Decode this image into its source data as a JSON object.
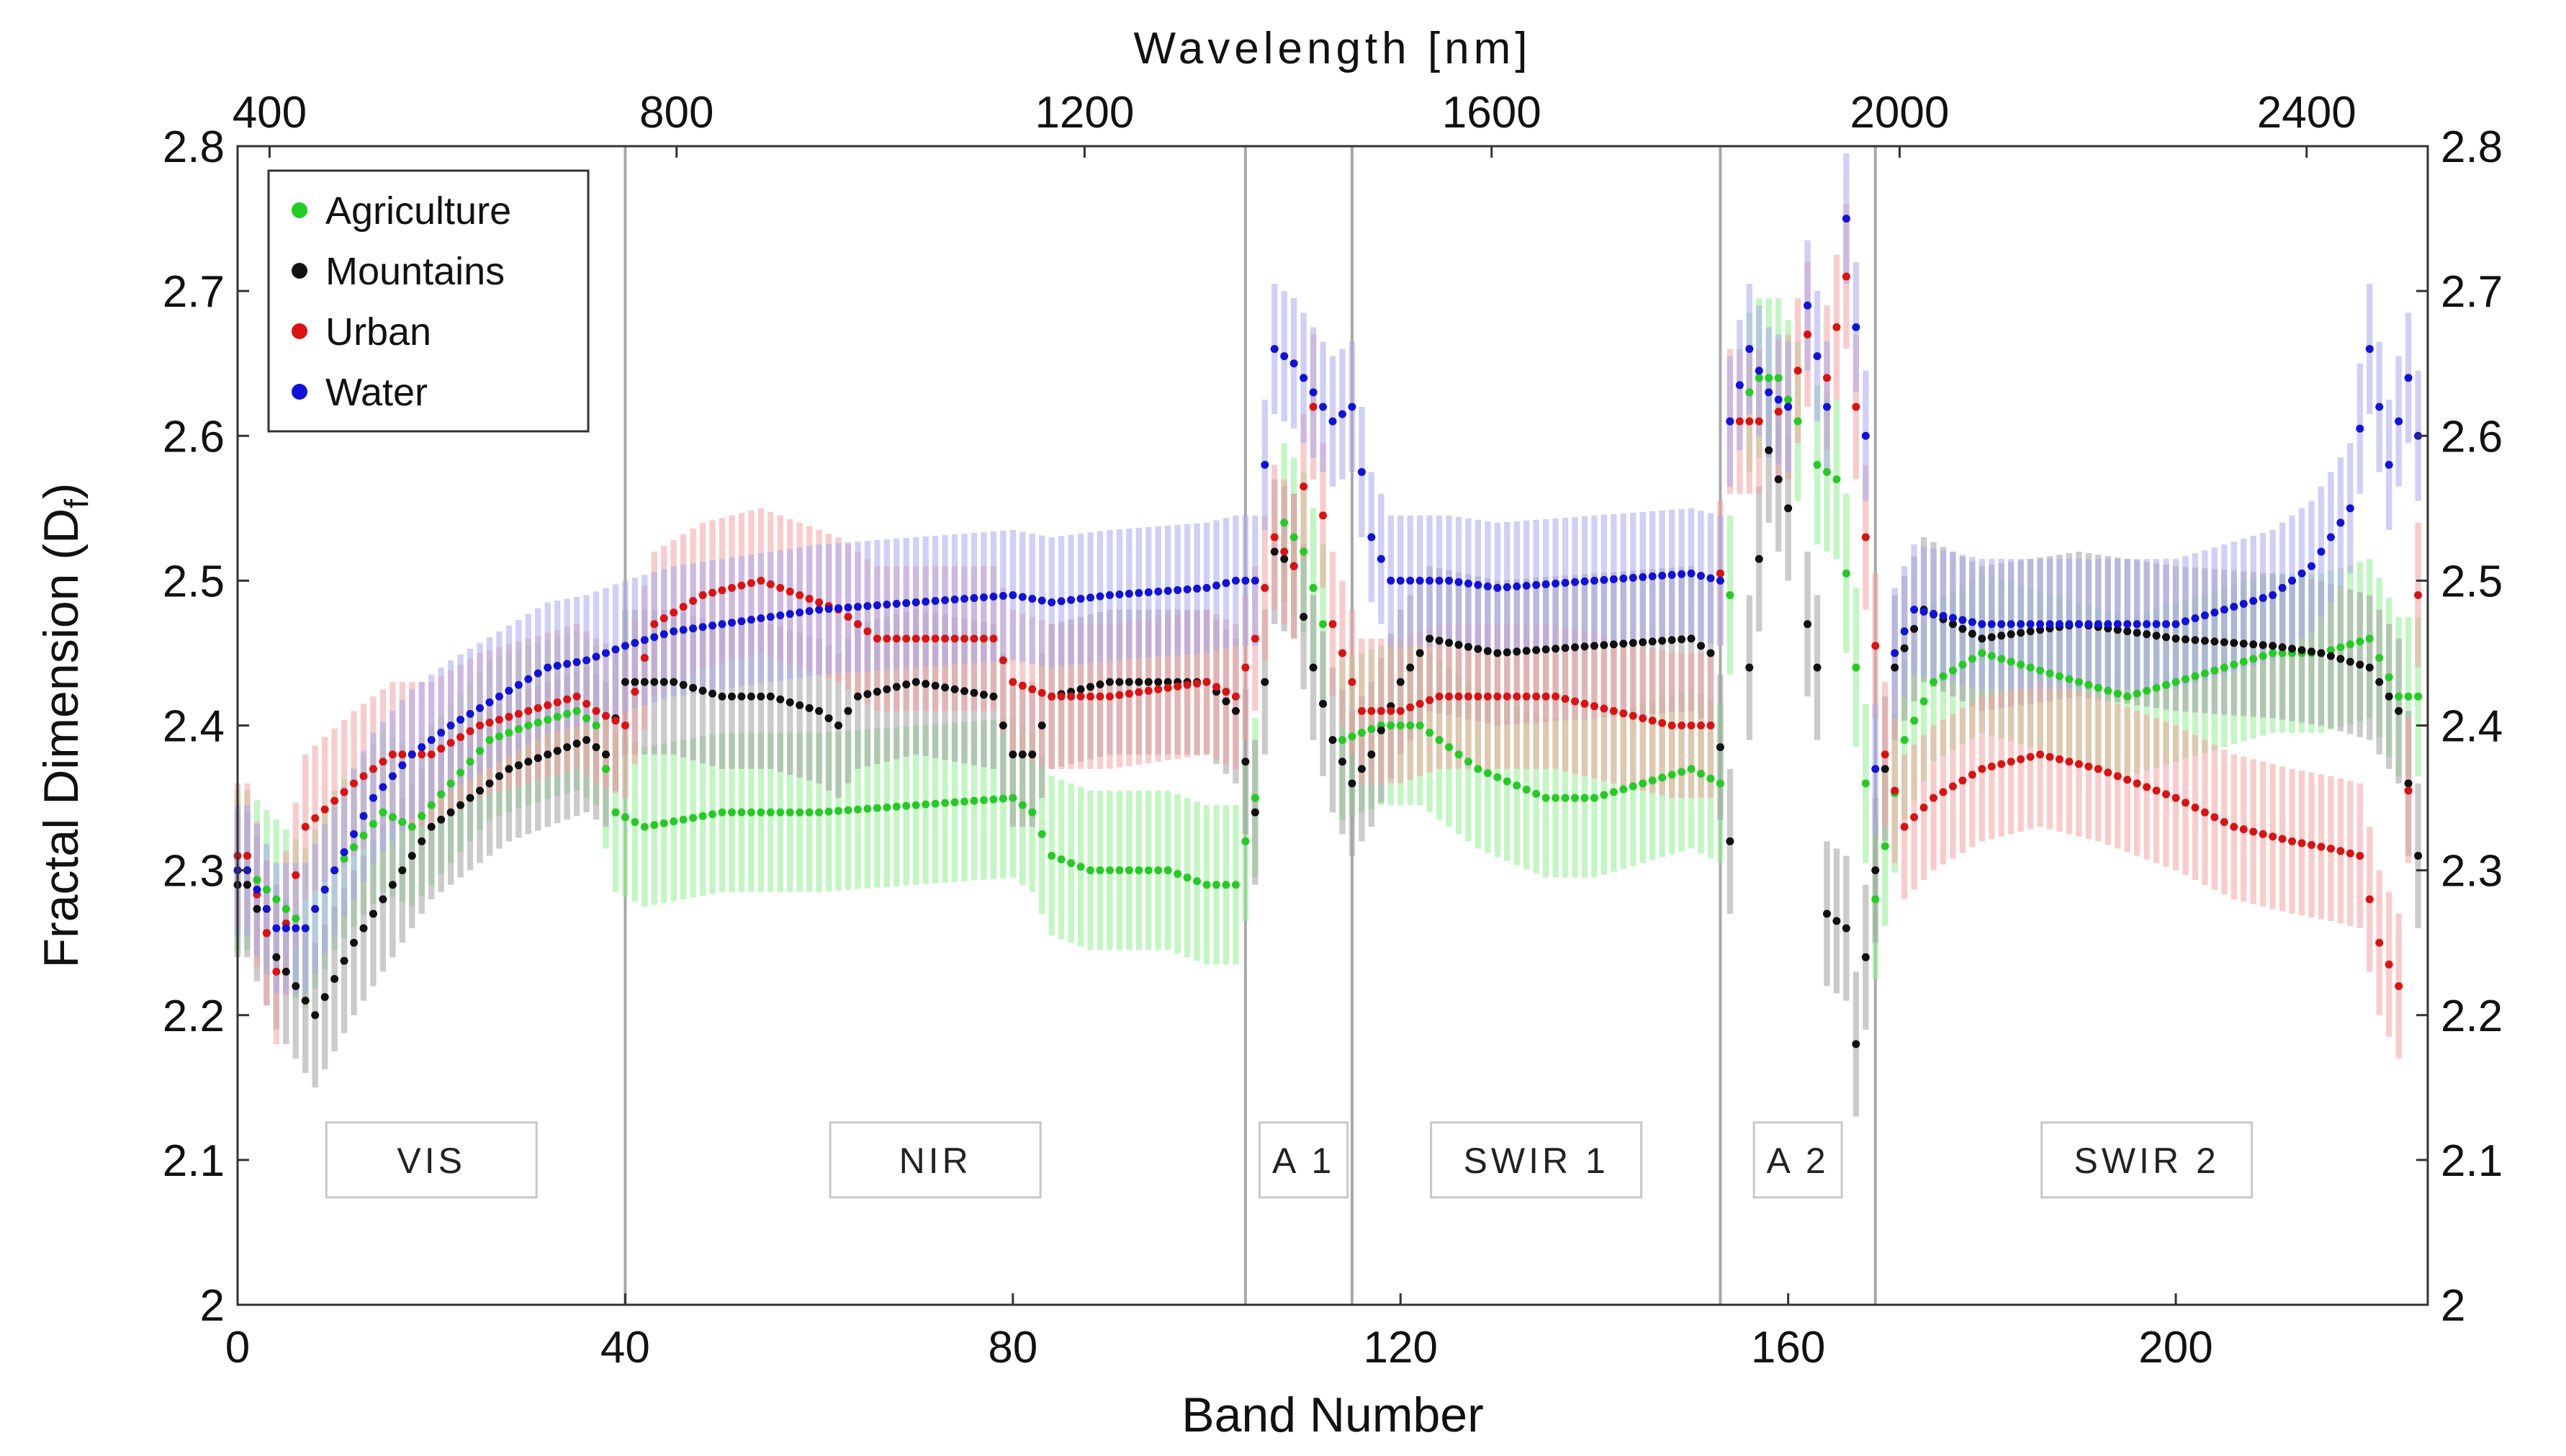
{
  "chart_data": {
    "type": "scatter",
    "title": "",
    "xlabel": "Band Number",
    "ylabel": "Fractal Dimension (D",
    "ylabel_subscript": "f",
    "ylabel_close": ")",
    "x2label": "Wavelength [nm]",
    "xlim": [
      0,
      226
    ],
    "ylim": [
      2.0,
      2.8
    ],
    "x_ticks": [
      0,
      40,
      80,
      120,
      160,
      200
    ],
    "x_tick_labels": [
      "0",
      "40",
      "80",
      "120",
      "160",
      "200"
    ],
    "y_ticks": [
      2.0,
      2.1,
      2.2,
      2.3,
      2.4,
      2.5,
      2.6,
      2.7,
      2.8
    ],
    "y_tick_labels": [
      "2",
      "2.1",
      "2.2",
      "2.3",
      "2.4",
      "2.5",
      "2.6",
      "2.7",
      "2.8"
    ],
    "x2_ticks_band": [
      3.3,
      45.3,
      87.4,
      129.4,
      171.5,
      213.5
    ],
    "x2_tick_labels": [
      "400",
      "800",
      "1200",
      "1600",
      "2000",
      "2400"
    ],
    "region_boundaries": [
      40,
      104,
      115,
      153,
      169
    ],
    "regions": [
      {
        "label": "VIS",
        "center": 20
      },
      {
        "label": "NIR",
        "center": 72
      },
      {
        "label": "A 1",
        "center": 110
      },
      {
        "label": "SWIR 1",
        "center": 134
      },
      {
        "label": "A 2",
        "center": 161
      },
      {
        "label": "SWIR 2",
        "center": 197
      }
    ],
    "legend": {
      "position": "top-left",
      "entries": [
        "Agriculture",
        "Mountains",
        "Urban",
        "Water"
      ]
    },
    "series": [
      {
        "name": "Agriculture",
        "color": "#22cc22",
        "band_color": "#90ee90",
        "anchors": [
          [
            1,
            2.3
          ],
          [
            4,
            2.28
          ],
          [
            7,
            2.26
          ],
          [
            10,
            2.3
          ],
          [
            15,
            2.34
          ],
          [
            18,
            2.33
          ],
          [
            22,
            2.36
          ],
          [
            26,
            2.39
          ],
          [
            30,
            2.4
          ],
          [
            35,
            2.41
          ],
          [
            37,
            2.4
          ],
          [
            39,
            2.34
          ],
          [
            42,
            2.33
          ],
          [
            50,
            2.34
          ],
          [
            60,
            2.34
          ],
          [
            70,
            2.345
          ],
          [
            80,
            2.35
          ],
          [
            82,
            2.34
          ],
          [
            84,
            2.31
          ],
          [
            88,
            2.3
          ],
          [
            96,
            2.3
          ],
          [
            100,
            2.29
          ],
          [
            103,
            2.29
          ],
          [
            105,
            2.35
          ],
          [
            108,
            2.54
          ],
          [
            110,
            2.52
          ],
          [
            112,
            2.47
          ],
          [
            114,
            2.39
          ],
          [
            118,
            2.4
          ],
          [
            122,
            2.4
          ],
          [
            128,
            2.37
          ],
          [
            135,
            2.35
          ],
          [
            140,
            2.35
          ],
          [
            145,
            2.36
          ],
          [
            150,
            2.37
          ],
          [
            153,
            2.36
          ],
          [
            154,
            2.49
          ],
          [
            155,
            2.62
          ],
          [
            157,
            2.64
          ],
          [
            159,
            2.64
          ],
          [
            161,
            2.61
          ],
          [
            163,
            2.58
          ],
          [
            165,
            2.57
          ],
          [
            167,
            2.44
          ],
          [
            169,
            2.28
          ],
          [
            172,
            2.39
          ],
          [
            175,
            2.43
          ],
          [
            180,
            2.45
          ],
          [
            185,
            2.44
          ],
          [
            190,
            2.43
          ],
          [
            195,
            2.42
          ],
          [
            200,
            2.43
          ],
          [
            205,
            2.44
          ],
          [
            210,
            2.45
          ],
          [
            215,
            2.45
          ],
          [
            220,
            2.46
          ],
          [
            223,
            2.42
          ],
          [
            225,
            2.42
          ]
        ],
        "err": 0.055,
        "missing": [
          [
            106,
            107
          ],
          [
            113,
            113
          ],
          [
            155,
            155
          ],
          [
            162,
            162
          ]
        ]
      },
      {
        "name": "Mountains",
        "color": "#111111",
        "band_color": "#a0a0a0",
        "anchors": [
          [
            1,
            2.29
          ],
          [
            4,
            2.24
          ],
          [
            8,
            2.2
          ],
          [
            12,
            2.25
          ],
          [
            16,
            2.29
          ],
          [
            20,
            2.33
          ],
          [
            24,
            2.35
          ],
          [
            28,
            2.37
          ],
          [
            32,
            2.38
          ],
          [
            36,
            2.39
          ],
          [
            38,
            2.38
          ],
          [
            40,
            2.43
          ],
          [
            45,
            2.43
          ],
          [
            50,
            2.42
          ],
          [
            55,
            2.42
          ],
          [
            60,
            2.41
          ],
          [
            62,
            2.4
          ],
          [
            64,
            2.42
          ],
          [
            70,
            2.43
          ],
          [
            78,
            2.42
          ],
          [
            80,
            2.38
          ],
          [
            82,
            2.38
          ],
          [
            84,
            2.42
          ],
          [
            90,
            2.43
          ],
          [
            100,
            2.43
          ],
          [
            103,
            2.41
          ],
          [
            105,
            2.34
          ],
          [
            107,
            2.52
          ],
          [
            109,
            2.51
          ],
          [
            111,
            2.44
          ],
          [
            113,
            2.39
          ],
          [
            115,
            2.36
          ],
          [
            117,
            2.38
          ],
          [
            120,
            2.43
          ],
          [
            123,
            2.46
          ],
          [
            130,
            2.45
          ],
          [
            140,
            2.455
          ],
          [
            150,
            2.46
          ],
          [
            152,
            2.45
          ],
          [
            154,
            2.32
          ],
          [
            156,
            2.44
          ],
          [
            158,
            2.59
          ],
          [
            160,
            2.55
          ],
          [
            162,
            2.47
          ],
          [
            163,
            2.44
          ],
          [
            164,
            2.27
          ],
          [
            166,
            2.26
          ],
          [
            167,
            2.18
          ],
          [
            169,
            2.3
          ],
          [
            171,
            2.44
          ],
          [
            174,
            2.48
          ],
          [
            180,
            2.46
          ],
          [
            190,
            2.47
          ],
          [
            200,
            2.46
          ],
          [
            210,
            2.455
          ],
          [
            215,
            2.45
          ],
          [
            220,
            2.44
          ],
          [
            223,
            2.41
          ],
          [
            225,
            2.31
          ]
        ],
        "err": 0.05,
        "missing": [
          [
            155,
            155
          ],
          [
            161,
            161
          ]
        ]
      },
      {
        "name": "Urban",
        "color": "#dd1111",
        "band_color": "#f4a3a3",
        "anchors": [
          [
            1,
            2.31
          ],
          [
            4,
            2.23
          ],
          [
            7,
            2.33
          ],
          [
            12,
            2.36
          ],
          [
            16,
            2.38
          ],
          [
            20,
            2.38
          ],
          [
            25,
            2.4
          ],
          [
            30,
            2.41
          ],
          [
            35,
            2.42
          ],
          [
            37,
            2.41
          ],
          [
            40,
            2.4
          ],
          [
            43,
            2.47
          ],
          [
            48,
            2.49
          ],
          [
            54,
            2.5
          ],
          [
            58,
            2.49
          ],
          [
            62,
            2.48
          ],
          [
            66,
            2.46
          ],
          [
            72,
            2.46
          ],
          [
            78,
            2.46
          ],
          [
            80,
            2.43
          ],
          [
            84,
            2.42
          ],
          [
            90,
            2.42
          ],
          [
            100,
            2.43
          ],
          [
            103,
            2.42
          ],
          [
            105,
            2.46
          ],
          [
            107,
            2.53
          ],
          [
            109,
            2.51
          ],
          [
            111,
            2.62
          ],
          [
            113,
            2.47
          ],
          [
            116,
            2.41
          ],
          [
            120,
            2.41
          ],
          [
            124,
            2.42
          ],
          [
            130,
            2.42
          ],
          [
            136,
            2.42
          ],
          [
            142,
            2.41
          ],
          [
            148,
            2.4
          ],
          [
            152,
            2.4
          ],
          [
            154,
            2.61
          ],
          [
            157,
            2.61
          ],
          [
            160,
            2.62
          ],
          [
            162,
            2.67
          ],
          [
            164,
            2.64
          ],
          [
            166,
            2.71
          ],
          [
            168,
            2.53
          ],
          [
            170,
            2.38
          ],
          [
            172,
            2.33
          ],
          [
            175,
            2.35
          ],
          [
            180,
            2.37
          ],
          [
            186,
            2.38
          ],
          [
            192,
            2.37
          ],
          [
            200,
            2.35
          ],
          [
            206,
            2.33
          ],
          [
            212,
            2.32
          ],
          [
            216,
            2.315
          ],
          [
            219,
            2.31
          ],
          [
            221,
            2.25
          ],
          [
            223,
            2.22
          ],
          [
            225,
            2.49
          ]
        ],
        "err": 0.05,
        "missing": [
          [
            158,
            158
          ],
          [
            163,
            163
          ]
        ]
      },
      {
        "name": "Water",
        "color": "#1111dd",
        "band_color": "#a9a9ee",
        "anchors": [
          [
            1,
            2.3
          ],
          [
            4,
            2.26
          ],
          [
            7,
            2.26
          ],
          [
            10,
            2.3
          ],
          [
            14,
            2.35
          ],
          [
            18,
            2.38
          ],
          [
            22,
            2.4
          ],
          [
            27,
            2.42
          ],
          [
            32,
            2.44
          ],
          [
            36,
            2.445
          ],
          [
            40,
            2.455
          ],
          [
            45,
            2.465
          ],
          [
            50,
            2.47
          ],
          [
            60,
            2.48
          ],
          [
            70,
            2.485
          ],
          [
            80,
            2.49
          ],
          [
            84,
            2.485
          ],
          [
            90,
            2.49
          ],
          [
            100,
            2.495
          ],
          [
            103,
            2.5
          ],
          [
            105,
            2.5
          ],
          [
            107,
            2.66
          ],
          [
            109,
            2.65
          ],
          [
            111,
            2.63
          ],
          [
            113,
            2.61
          ],
          [
            115,
            2.62
          ],
          [
            117,
            2.53
          ],
          [
            119,
            2.5
          ],
          [
            125,
            2.5
          ],
          [
            130,
            2.495
          ],
          [
            140,
            2.5
          ],
          [
            150,
            2.505
          ],
          [
            153,
            2.5
          ],
          [
            154,
            2.61
          ],
          [
            156,
            2.66
          ],
          [
            158,
            2.63
          ],
          [
            160,
            2.62
          ],
          [
            162,
            2.69
          ],
          [
            164,
            2.62
          ],
          [
            166,
            2.75
          ],
          [
            168,
            2.6
          ],
          [
            169,
            2.37
          ],
          [
            171,
            2.45
          ],
          [
            173,
            2.48
          ],
          [
            180,
            2.47
          ],
          [
            190,
            2.47
          ],
          [
            200,
            2.47
          ],
          [
            205,
            2.48
          ],
          [
            210,
            2.49
          ],
          [
            214,
            2.51
          ],
          [
            218,
            2.55
          ],
          [
            220,
            2.66
          ],
          [
            222,
            2.58
          ],
          [
            224,
            2.64
          ],
          [
            225,
            2.6
          ]
        ],
        "err": 0.045,
        "missing": [
          [
            161,
            161
          ],
          [
            165,
            165
          ],
          [
            170,
            170
          ]
        ]
      }
    ]
  }
}
